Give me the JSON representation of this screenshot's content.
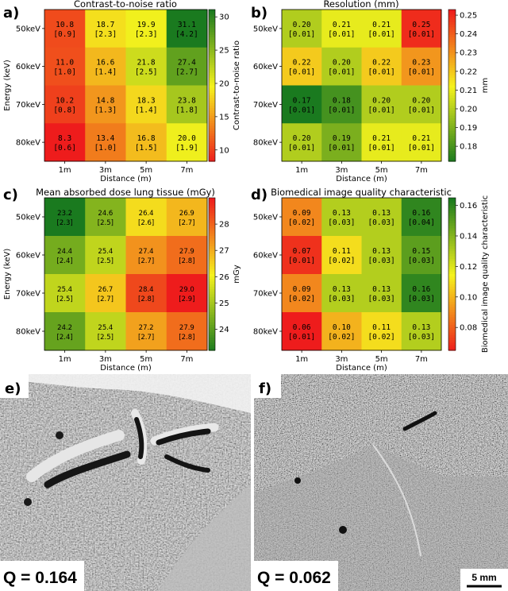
{
  "colors": {
    "low": "#ee1c1c",
    "mid": "#f5f21d",
    "high": "#1a7a1f"
  },
  "chart_data": [
    {
      "panel": "a)",
      "type": "heatmap",
      "title": "Contrast-to-noise ratio",
      "xlabel": "Distance (m)",
      "ylabel": "Energy (keV)",
      "x": [
        "1m",
        "3m",
        "5m",
        "7m"
      ],
      "y": [
        "50keV",
        "60keV",
        "70keV",
        "80keV"
      ],
      "values": [
        [
          10.8,
          18.7,
          19.9,
          31.1
        ],
        [
          11.0,
          16.6,
          21.8,
          27.4
        ],
        [
          10.2,
          14.8,
          18.3,
          23.8
        ],
        [
          8.3,
          13.4,
          16.8,
          20.0
        ]
      ],
      "uncertainty": [
        [
          "0.9",
          "2.3",
          "2.3",
          "4.2"
        ],
        [
          "1.0",
          "1.4",
          "2.5",
          "2.7"
        ],
        [
          "0.8",
          "1.3",
          "1.4",
          "1.8"
        ],
        [
          "0.6",
          "1.0",
          "1.5",
          "1.9"
        ]
      ],
      "value_labels": [
        [
          "10.8",
          "18.7",
          "19.9",
          "31.1"
        ],
        [
          "11.0",
          "16.6",
          "21.8",
          "27.4"
        ],
        [
          "10.2",
          "14.8",
          "18.3",
          "23.8"
        ],
        [
          "8.3",
          "13.4",
          "16.8",
          "20.0"
        ]
      ],
      "colorbar_label": "Contrast-to-noise ratio",
      "colorbar_range": [
        8.3,
        31.1
      ],
      "colorbar_ticks": [
        10,
        15,
        20,
        25,
        30
      ],
      "colormap": "red-yellow-green"
    },
    {
      "panel": "b)",
      "type": "heatmap",
      "title": "Resolution (mm)",
      "xlabel": "Distance (m)",
      "ylabel": "",
      "x": [
        "1m",
        "3m",
        "5m",
        "7m"
      ],
      "y": [
        "50keV",
        "60keV",
        "70keV",
        "80keV"
      ],
      "values": [
        [
          0.2,
          0.21,
          0.21,
          0.25
        ],
        [
          0.22,
          0.2,
          0.22,
          0.23
        ],
        [
          0.17,
          0.18,
          0.2,
          0.2
        ],
        [
          0.2,
          0.19,
          0.21,
          0.21
        ]
      ],
      "uncertainty": [
        [
          "0.01",
          "0.01",
          "0.01",
          "0.01"
        ],
        [
          "0.01",
          "0.01",
          "0.01",
          "0.01"
        ],
        [
          "0.01",
          "0.01",
          "0.01",
          "0.01"
        ],
        [
          "0.01",
          "0.01",
          "0.01",
          "0.01"
        ]
      ],
      "value_labels": [
        [
          "0.20",
          "0.21",
          "0.21",
          "0.25"
        ],
        [
          "0.22",
          "0.20",
          "0.22",
          "0.23"
        ],
        [
          "0.17",
          "0.18",
          "0.20",
          "0.20"
        ],
        [
          "0.20",
          "0.19",
          "0.21",
          "0.21"
        ]
      ],
      "colorbar_label": "mm",
      "colorbar_range": [
        0.172,
        0.253
      ],
      "colorbar_ticks": [
        0.18,
        0.19,
        0.2,
        0.21,
        0.22,
        0.23,
        0.24,
        0.25
      ],
      "colorbar_tick_labels": [
        "0.18",
        "0.19",
        "0.20",
        "0.21",
        "0.22",
        "0.23",
        "0.24",
        "0.25"
      ],
      "colormap": "green-yellow-red"
    },
    {
      "panel": "c)",
      "type": "heatmap",
      "title": "Mean absorbed dose lung tissue (mGy)",
      "xlabel": "Distance (m)",
      "ylabel": "Energy (keV)",
      "x": [
        "1m",
        "3m",
        "5m",
        "7m"
      ],
      "y": [
        "50keV",
        "60keV",
        "70keV",
        "80keV"
      ],
      "values": [
        [
          23.2,
          24.6,
          26.4,
          26.9
        ],
        [
          24.4,
          25.4,
          27.4,
          27.9
        ],
        [
          25.4,
          26.7,
          28.4,
          29.0
        ],
        [
          24.2,
          25.4,
          27.2,
          27.9
        ]
      ],
      "uncertainty": [
        [
          "2.3",
          "2.5",
          "2.6",
          "2.7"
        ],
        [
          "2.4",
          "2.5",
          "2.7",
          "2.8"
        ],
        [
          "2.5",
          "2.7",
          "2.8",
          "2.9"
        ],
        [
          "2.4",
          "2.5",
          "2.7",
          "2.8"
        ]
      ],
      "value_labels": [
        [
          "23.2",
          "24.6",
          "26.4",
          "26.9"
        ],
        [
          "24.4",
          "25.4",
          "27.4",
          "27.9"
        ],
        [
          "25.4",
          "26.7",
          "28.4",
          "29.0"
        ],
        [
          "24.2",
          "25.4",
          "27.2",
          "27.9"
        ]
      ],
      "colorbar_label": "mGy",
      "colorbar_range": [
        23.2,
        29.0
      ],
      "colorbar_ticks": [
        24,
        25,
        26,
        27,
        28
      ],
      "colormap": "green-yellow-red"
    },
    {
      "panel": "d)",
      "type": "heatmap",
      "title": "Biomedical image quality characteristic",
      "xlabel": "Distance (m)",
      "ylabel": "",
      "x": [
        "1m",
        "3m",
        "5m",
        "7m"
      ],
      "y": [
        "50keV",
        "60keV",
        "70keV",
        "80keV"
      ],
      "values": [
        [
          0.09,
          0.13,
          0.13,
          0.16
        ],
        [
          0.07,
          0.11,
          0.13,
          0.15
        ],
        [
          0.09,
          0.13,
          0.13,
          0.16
        ],
        [
          0.06,
          0.1,
          0.11,
          0.13
        ]
      ],
      "uncertainty": [
        [
          "0.02",
          "0.03",
          "0.03",
          "0.04"
        ],
        [
          "0.01",
          "0.02",
          "0.03",
          "0.03"
        ],
        [
          "0.02",
          "0.03",
          "0.03",
          "0.03"
        ],
        [
          "0.01",
          "0.02",
          "0.02",
          "0.03"
        ]
      ],
      "value_labels": [
        [
          "0.09",
          "0.13",
          "0.13",
          "0.16"
        ],
        [
          "0.07",
          "0.11",
          "0.13",
          "0.15"
        ],
        [
          "0.09",
          "0.13",
          "0.13",
          "0.16"
        ],
        [
          "0.06",
          "0.10",
          "0.11",
          "0.13"
        ]
      ],
      "colorbar_label": "Biomedical image quality characteristic",
      "colorbar_range": [
        0.065,
        0.165
      ],
      "colorbar_ticks": [
        0.08,
        0.1,
        0.12,
        0.14,
        0.16
      ],
      "colorbar_tick_labels": [
        "0.08",
        "0.10",
        "0.12",
        "0.14",
        "0.16"
      ],
      "colormap": "red-yellow-green"
    }
  ],
  "images": [
    {
      "panel": "e)",
      "caption": "Q = 0.164"
    },
    {
      "panel": "f)",
      "caption": "Q = 0.062",
      "scale_bar": "5 mm"
    }
  ]
}
